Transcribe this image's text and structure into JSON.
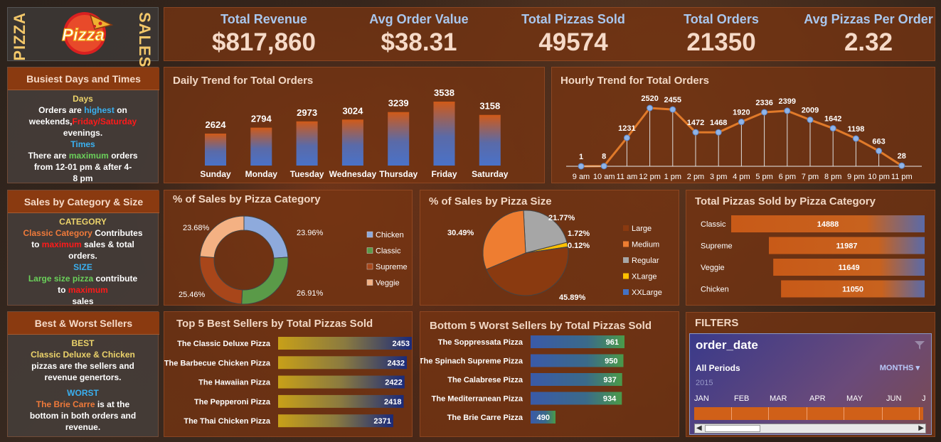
{
  "header": {
    "left_word": "PIZZA",
    "logo_text": "Pizza",
    "right_word": "SALES"
  },
  "kpis": [
    {
      "label": "Total Revenue",
      "value": "$817,860"
    },
    {
      "label": "Avg Order Value",
      "value": "$38.31"
    },
    {
      "label": "Total Pizzas Sold",
      "value": "49574"
    },
    {
      "label": "Total Orders",
      "value": "21350"
    },
    {
      "label": "Avg Pizzas Per Order",
      "value": "2.32"
    }
  ],
  "busiest": {
    "title": "Busiest Days and Times",
    "days_head": "Days",
    "days_l1a": "Orders are ",
    "days_l1b": "highest",
    "days_l1c": " on",
    "days_l2a": "weekends,",
    "days_l2b": "Friday/Saturday",
    "days_l3": "evenings.",
    "times_head": "Times",
    "times_l1a": "There are ",
    "times_l1b": "maximum",
    "times_l1c": " orders",
    "times_l2": "from 12-01 pm & after 4-",
    "times_l3": "8 pm"
  },
  "category_size": {
    "title": "Sales by Category & Size",
    "cat_head": "CATEGORY",
    "cat_l1a": "Classic Category",
    "cat_l1b": " Contributes",
    "cat_l2a": "to ",
    "cat_l2b": "maximum",
    "cat_l2c": " sales & total",
    "cat_l3": "orders.",
    "size_head": "SIZE",
    "size_l1a": "Large size pizza",
    "size_l1b": " contribute",
    "size_l2a": "to ",
    "size_l2b": "maximum",
    "size_l3": "sales"
  },
  "best_worst": {
    "title": "Best & Worst Sellers",
    "best_head": "BEST",
    "best_l1": "Classic Deluxe & Chicken",
    "best_l2": "pizzas are the sellers and",
    "best_l3": "revenue genertors.",
    "worst_head": "WORST",
    "worst_l1a": "The Brie Carre",
    "worst_l1b": "  is at the",
    "worst_l2": "bottom in both orders and",
    "worst_l3": "revenue."
  },
  "filters": {
    "title": "FILTERS",
    "slicer_title": "order_date",
    "period": "All Periods",
    "level": "MONTHS",
    "year": "2015",
    "months": [
      "JAN",
      "FEB",
      "MAR",
      "APR",
      "MAY",
      "JUN",
      "J"
    ]
  },
  "colors": {
    "accent": "#d86818",
    "panel": "#7a3412",
    "kpi_label": "#a9c7ee",
    "kpi_value": "#f6dac8"
  },
  "chart_data": [
    {
      "id": "daily",
      "type": "bar",
      "title": "Daily Trend for Total Orders",
      "categories": [
        "Sunday",
        "Monday",
        "Tuesday",
        "Wednesday",
        "Thursday",
        "Friday",
        "Saturday"
      ],
      "values": [
        2624,
        2794,
        2973,
        3024,
        3239,
        3538,
        3158
      ]
    },
    {
      "id": "hourly",
      "type": "line",
      "title": "Hourly Trend for Total Orders",
      "categories": [
        "9 am",
        "10 am",
        "11 am",
        "12 pm",
        "1 pm",
        "2 pm",
        "3 pm",
        "4 pm",
        "5 pm",
        "6 pm",
        "7 pm",
        "8 pm",
        "9 pm",
        "10 pm",
        "11 pm"
      ],
      "values": [
        1,
        8,
        1231,
        2520,
        2455,
        1472,
        1468,
        1920,
        2336,
        2399,
        2009,
        1642,
        1198,
        663,
        28
      ]
    },
    {
      "id": "category_pct",
      "type": "pie",
      "title": "% of Sales by Pizza Category",
      "labels": [
        "Chicken",
        "Classic",
        "Supreme",
        "Veggie"
      ],
      "values": [
        23.96,
        26.91,
        25.46,
        23.68
      ],
      "value_labels": [
        "23.96%",
        "26.91%",
        "25.46%",
        "23.68%"
      ],
      "colors": [
        "#8eaadc",
        "#5a9a48",
        "#a8461a",
        "#f4b183"
      ]
    },
    {
      "id": "size_pct",
      "type": "pie",
      "title": "% of Sales by Pizza Size",
      "labels": [
        "Large",
        "Medium",
        "Regular",
        "XLarge",
        "XXLarge"
      ],
      "values": [
        45.89,
        30.49,
        21.77,
        1.72,
        0.12
      ],
      "value_labels": [
        "45.89%",
        "30.49%",
        "21.77%",
        "1.72%",
        "0.12%"
      ],
      "colors": [
        "#8a3a10",
        "#ee7d31",
        "#a6a6a6",
        "#ffc000",
        "#4472c4"
      ]
    },
    {
      "id": "category_sold",
      "type": "bar",
      "title": "Total Pizzas Sold by Pizza Category",
      "categories": [
        "Classic",
        "Supreme",
        "Veggie",
        "Chicken"
      ],
      "values": [
        14888,
        11987,
        11649,
        11050
      ]
    },
    {
      "id": "best5",
      "type": "bar",
      "title": "Top 5 Best Sellers by Total Pizzas Sold",
      "categories": [
        "The Classic Deluxe Pizza",
        "The Barbecue Chicken Pizza",
        "The Hawaiian Pizza",
        "The Pepperoni Pizza",
        "The Thai Chicken Pizza"
      ],
      "values": [
        2453,
        2432,
        2422,
        2418,
        2371
      ]
    },
    {
      "id": "worst5",
      "type": "bar",
      "title": "Bottom 5 Worst Sellers by Total Pizzas Sold",
      "categories": [
        "The Soppressata Pizza",
        "The Spinach Supreme Pizza",
        "The Calabrese Pizza",
        "The Mediterranean Pizza",
        "The Brie Carre Pizza"
      ],
      "values": [
        961,
        950,
        937,
        934,
        490
      ]
    }
  ]
}
